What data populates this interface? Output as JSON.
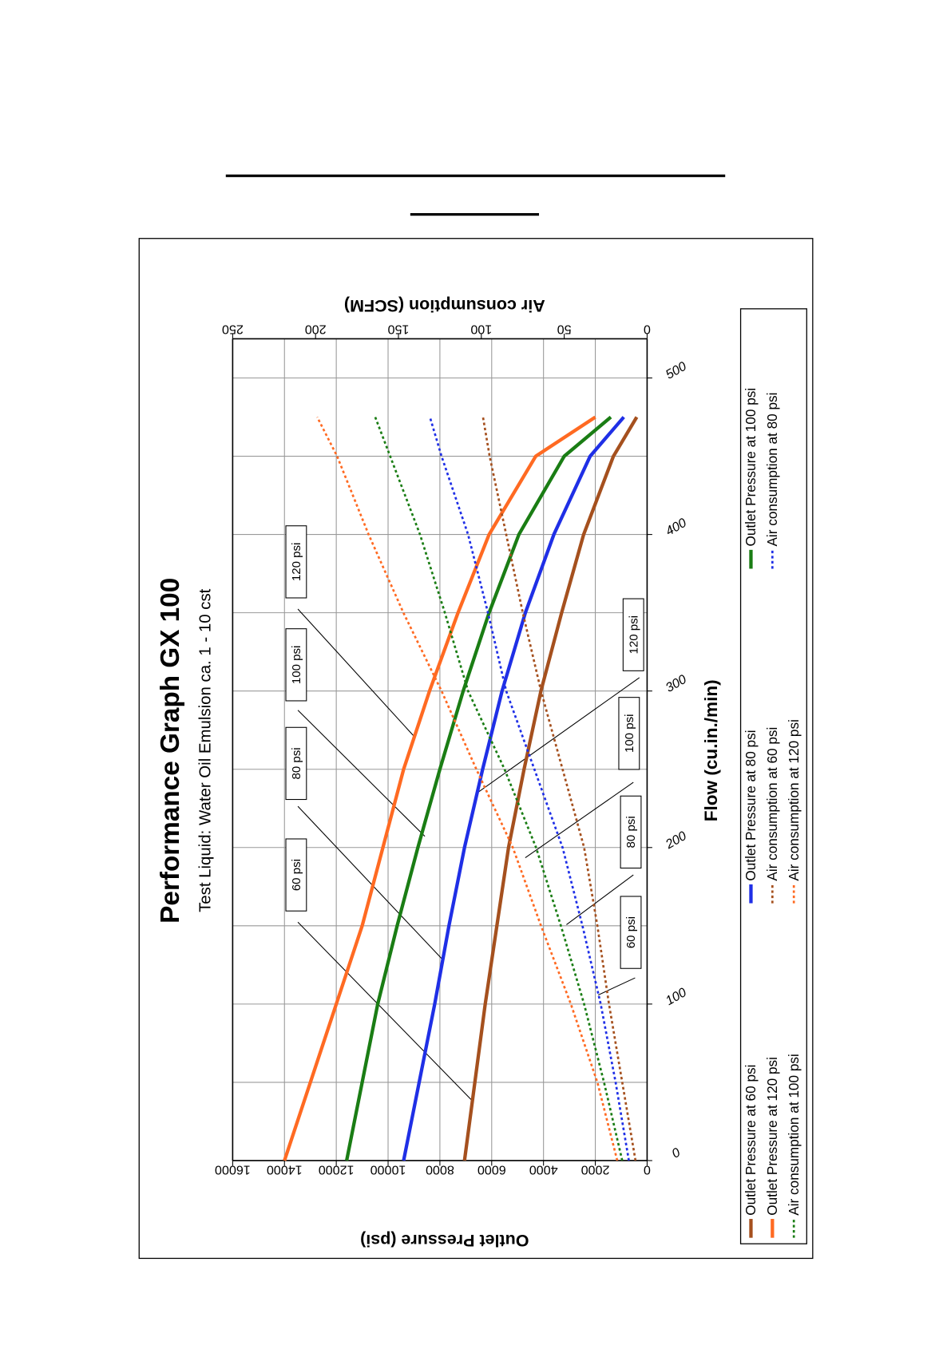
{
  "chart_data": {
    "type": "line",
    "title": "Performance Graph GX 100",
    "subtitle": "Test Liquid: Water Oil Emulsion ca. 1 - 10 cst",
    "xlabel": "Flow (cu.in./min)",
    "ylabel": "Outlet Pressure (psi)",
    "y2label": "Air consumption (SCFM)",
    "x": [
      0,
      50,
      100,
      150,
      200,
      250,
      300,
      350,
      400,
      450,
      475
    ],
    "xlim": [
      0,
      525
    ],
    "xticks": [
      0,
      100,
      200,
      300,
      400,
      500
    ],
    "xminorticks": [
      50,
      150,
      250,
      350,
      450
    ],
    "ylim": [
      0,
      16000
    ],
    "yticks": [
      0,
      2000,
      4000,
      6000,
      8000,
      10000,
      12000,
      14000,
      16000
    ],
    "y2lim": [
      0,
      250
    ],
    "y2ticks": [
      0,
      50,
      100,
      150,
      200,
      250
    ],
    "grid": true,
    "legend": "bottom",
    "series": [
      {
        "name": "Outlet Pressure at 60 psi",
        "color": "#a5501e",
        "style": "solid",
        "values": [
          7050,
          6650,
          6250,
          5800,
          5350,
          4750,
          4100,
          3300,
          2450,
          1300,
          400
        ]
      },
      {
        "name": "Outlet Pressure at 80 psi",
        "color": "#1f2fe6",
        "style": "solid",
        "values": [
          9400,
          8800,
          8200,
          7650,
          7050,
          6350,
          5600,
          4700,
          3600,
          2200,
          900
        ]
      },
      {
        "name": "Outlet Pressure at 100 psi",
        "color": "#1a7d14",
        "style": "solid",
        "values": [
          11600,
          11000,
          10400,
          9650,
          8850,
          8000,
          7100,
          6100,
          4950,
          3200,
          1400
        ]
      },
      {
        "name": "Outlet Pressure at 120 psi",
        "color": "#ff6a22",
        "style": "solid",
        "values": [
          14000,
          13000,
          12000,
          11000,
          10200,
          9400,
          8400,
          7300,
          6100,
          4300,
          2000
        ]
      },
      {
        "name": "Air consumption at 60 psi",
        "color": "#a5501e",
        "style": "dotted",
        "axis": "y2",
        "values": [
          7,
          15,
          23,
          30,
          38,
          51,
          64,
          75,
          85,
          95,
          99
        ]
      },
      {
        "name": "Air consumption at 80 psi",
        "color": "#1f2fe6",
        "style": "dotted",
        "axis": "y2",
        "values": [
          11,
          19,
          28,
          39,
          51,
          68,
          85,
          96,
          108,
          124,
          131
        ]
      },
      {
        "name": "Air consumption at 100 psi",
        "color": "#1a7d14",
        "style": "dotted",
        "axis": "y2",
        "values": [
          15,
          26,
          38,
          52,
          67,
          86,
          108,
          122,
          137,
          155,
          164
        ]
      },
      {
        "name": "Air consumption at 120 psi",
        "color": "#ff6a22",
        "style": "dotted",
        "axis": "y2",
        "values": [
          18,
          30,
          46,
          64,
          81,
          103,
          124,
          147,
          168,
          187,
          199
        ]
      }
    ],
    "annotations": [
      "60 psi",
      "80 psi",
      "100 psi",
      "120 psi",
      "60 psi",
      "80 psi",
      "100 psi",
      "120 psi"
    ]
  }
}
